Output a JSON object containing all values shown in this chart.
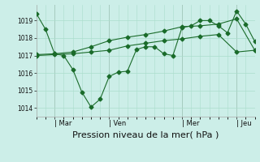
{
  "background_color": "#cceee8",
  "grid_color": "#aaddcc",
  "line_color": "#1a6b2a",
  "marker_color": "#1a6b2a",
  "xlabel": "Pression niveau de la mer( hPa )",
  "xlabel_fontsize": 8,
  "ylim": [
    1013.5,
    1019.9
  ],
  "yticks": [
    1014,
    1015,
    1016,
    1017,
    1018,
    1019
  ],
  "day_labels": [
    "| Mar",
    "| Ven",
    "| Mer",
    "| Jeu"
  ],
  "day_positions": [
    2,
    8,
    16,
    22
  ],
  "xlim": [
    0,
    24
  ],
  "series1_x": [
    0,
    1,
    2,
    3,
    4,
    5,
    6,
    7,
    8,
    9,
    10,
    11,
    12,
    13,
    14,
    15,
    16,
    17,
    18,
    19,
    20,
    21,
    22,
    23,
    24
  ],
  "series1_y": [
    1019.4,
    1018.5,
    1017.1,
    1017.0,
    1016.2,
    1014.9,
    1014.05,
    1014.5,
    1015.8,
    1016.05,
    1016.1,
    1017.35,
    1017.5,
    1017.5,
    1017.1,
    1017.0,
    1018.6,
    1018.7,
    1019.0,
    1019.0,
    1018.7,
    1018.3,
    1019.55,
    1018.8,
    1017.8
  ],
  "series2_x": [
    0,
    2,
    4,
    6,
    8,
    10,
    12,
    14,
    16,
    18,
    20,
    22,
    24
  ],
  "series2_y": [
    1017.0,
    1017.05,
    1017.1,
    1017.2,
    1017.3,
    1017.55,
    1017.7,
    1017.85,
    1017.95,
    1018.1,
    1018.2,
    1017.2,
    1017.3
  ],
  "series3_x": [
    0,
    2,
    4,
    6,
    8,
    10,
    12,
    14,
    16,
    18,
    20,
    22,
    24
  ],
  "series3_y": [
    1017.05,
    1017.1,
    1017.2,
    1017.5,
    1017.85,
    1018.05,
    1018.2,
    1018.4,
    1018.65,
    1018.7,
    1018.8,
    1019.1,
    1017.3
  ]
}
